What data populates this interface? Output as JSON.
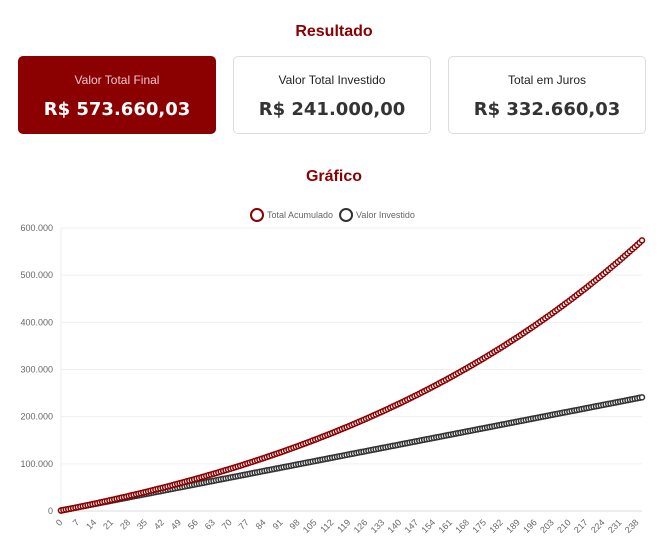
{
  "result_title": "Resultado",
  "cards": [
    {
      "label": "Valor Total Final",
      "value": "R$ 573.660,03"
    },
    {
      "label": "Valor Total Investido",
      "value": "R$ 241.000,00"
    },
    {
      "label": "Total em Juros",
      "value": "R$ 332.660,03"
    }
  ],
  "chart_title": "Gráfico",
  "chart_data": {
    "type": "line",
    "x_range": [
      0,
      240
    ],
    "x_ticks": [
      0,
      7,
      14,
      21,
      28,
      35,
      42,
      49,
      56,
      63,
      70,
      77,
      84,
      91,
      98,
      105,
      112,
      119,
      126,
      133,
      140,
      147,
      154,
      161,
      168,
      175,
      182,
      189,
      196,
      203,
      210,
      217,
      224,
      231,
      238
    ],
    "ylim": [
      0,
      600000
    ],
    "y_ticks": [
      {
        "v": 0,
        "t": "0"
      },
      {
        "v": 100000,
        "t": "100.000"
      },
      {
        "v": 200000,
        "t": "200.000"
      },
      {
        "v": 300000,
        "t": "300.000"
      },
      {
        "v": 400000,
        "t": "400.000"
      },
      {
        "v": 500000,
        "t": "500.000"
      },
      {
        "v": 600000,
        "t": "600.000"
      }
    ],
    "grid": true,
    "legend": "top",
    "sample_x": [
      0,
      7,
      14,
      21,
      28,
      35,
      42,
      49,
      56,
      63,
      70,
      77,
      84,
      91,
      98,
      105,
      112,
      119,
      126,
      133,
      140,
      147,
      154,
      161,
      168,
      175,
      182,
      189,
      196,
      203,
      210,
      217,
      224,
      231,
      238,
      240
    ],
    "series": [
      {
        "name": "Total Acumulado",
        "color": "#8b0000",
        "values": [
          1000,
          8180,
          15690,
          23550,
          31770,
          40360,
          49350,
          58750,
          68580,
          78870,
          89630,
          100870,
          112630,
          124940,
          137810,
          151270,
          165340,
          180060,
          195460,
          211570,
          228410,
          246040,
          264460,
          283740,
          303890,
          324970,
          347020,
          370080,
          394190,
          419410,
          445790,
          473390,
          502240,
          532420,
          563990,
          573660
        ]
      },
      {
        "name": "Valor Investido",
        "color": "#333333",
        "values": [
          1000,
          8000,
          15000,
          22000,
          29000,
          36000,
          43000,
          50000,
          57000,
          64000,
          71000,
          78000,
          85000,
          92000,
          99000,
          106000,
          113000,
          120000,
          127000,
          134000,
          141000,
          148000,
          155000,
          162000,
          169000,
          176000,
          183000,
          190000,
          197000,
          204000,
          211000,
          218000,
          225000,
          232000,
          239000,
          241000
        ]
      }
    ]
  }
}
